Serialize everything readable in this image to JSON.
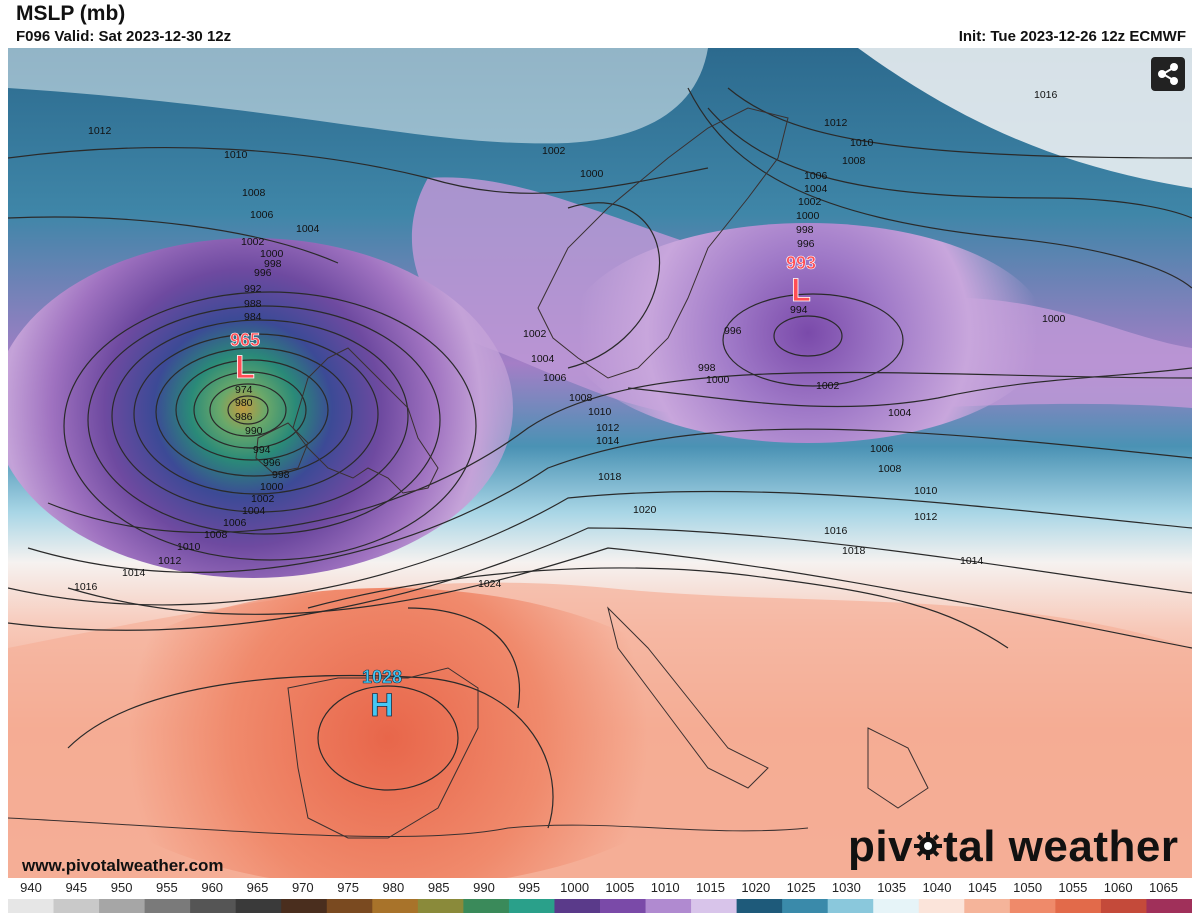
{
  "header": {
    "title": "MSLP (mb)",
    "valid": "F096 Valid: Sat 2023-12-30 12z",
    "init": "Init: Tue 2023-12-26 12z ECMWF"
  },
  "centers": [
    {
      "type": "L",
      "value": "965",
      "color": "#ff4d55"
    },
    {
      "type": "L",
      "value": "993",
      "color": "#ff4d55"
    },
    {
      "type": "H",
      "value": "1028",
      "color": "#45c8f5"
    }
  ],
  "isobar_labels": [
    "1012",
    "1010",
    "1008",
    "1006",
    "1004",
    "1002",
    "1000",
    "998",
    "996",
    "992",
    "988",
    "984",
    "974",
    "980",
    "986",
    "990",
    "994",
    "996",
    "998",
    "1000",
    "1002",
    "1004",
    "1006",
    "1008",
    "1010",
    "1012",
    "1014",
    "1016",
    "1024",
    "1002",
    "1000",
    "1002",
    "1004",
    "1006",
    "1008",
    "1010",
    "1012",
    "1014",
    "1018",
    "1020",
    "1016",
    "1018",
    "1016",
    "1012",
    "1010",
    "1008",
    "1006",
    "1004",
    "1002",
    "1000",
    "998",
    "996",
    "994",
    "996",
    "998",
    "1000",
    "1002",
    "1004",
    "1006",
    "1008",
    "1010",
    "1012",
    "1014",
    "1000"
  ],
  "footer": {
    "url": "www.pivotalweather.com",
    "brand_left": "piv",
    "brand_right": "tal weather"
  },
  "icons": {
    "share": "share-icon",
    "brand_gear": "gear-icon"
  },
  "colorbar": {
    "labels": [
      "940",
      "945",
      "950",
      "955",
      "960",
      "965",
      "970",
      "975",
      "980",
      "985",
      "990",
      "995",
      "1000",
      "1005",
      "1010",
      "1015",
      "1020",
      "1025",
      "1030",
      "1035",
      "1040",
      "1045",
      "1050",
      "1055",
      "1060",
      "1065"
    ],
    "colors": [
      "#e6e6e6",
      "#c9c9c9",
      "#a6a6a6",
      "#7a7a7a",
      "#555555",
      "#3a3a3a",
      "#4a2e1e",
      "#7a4a20",
      "#a8732a",
      "#8a8a3a",
      "#3a8a5a",
      "#2aa08a",
      "#5a3a8a",
      "#7a4aa8",
      "#b08ad0",
      "#d8c4ea",
      "#1e5a7a",
      "#3a8aaa",
      "#8ac8dc",
      "#e6f4f8",
      "#fbe4da",
      "#f5b49a",
      "#ef8a6a",
      "#e26a4a",
      "#c44a3a",
      "#a0305a"
    ]
  }
}
